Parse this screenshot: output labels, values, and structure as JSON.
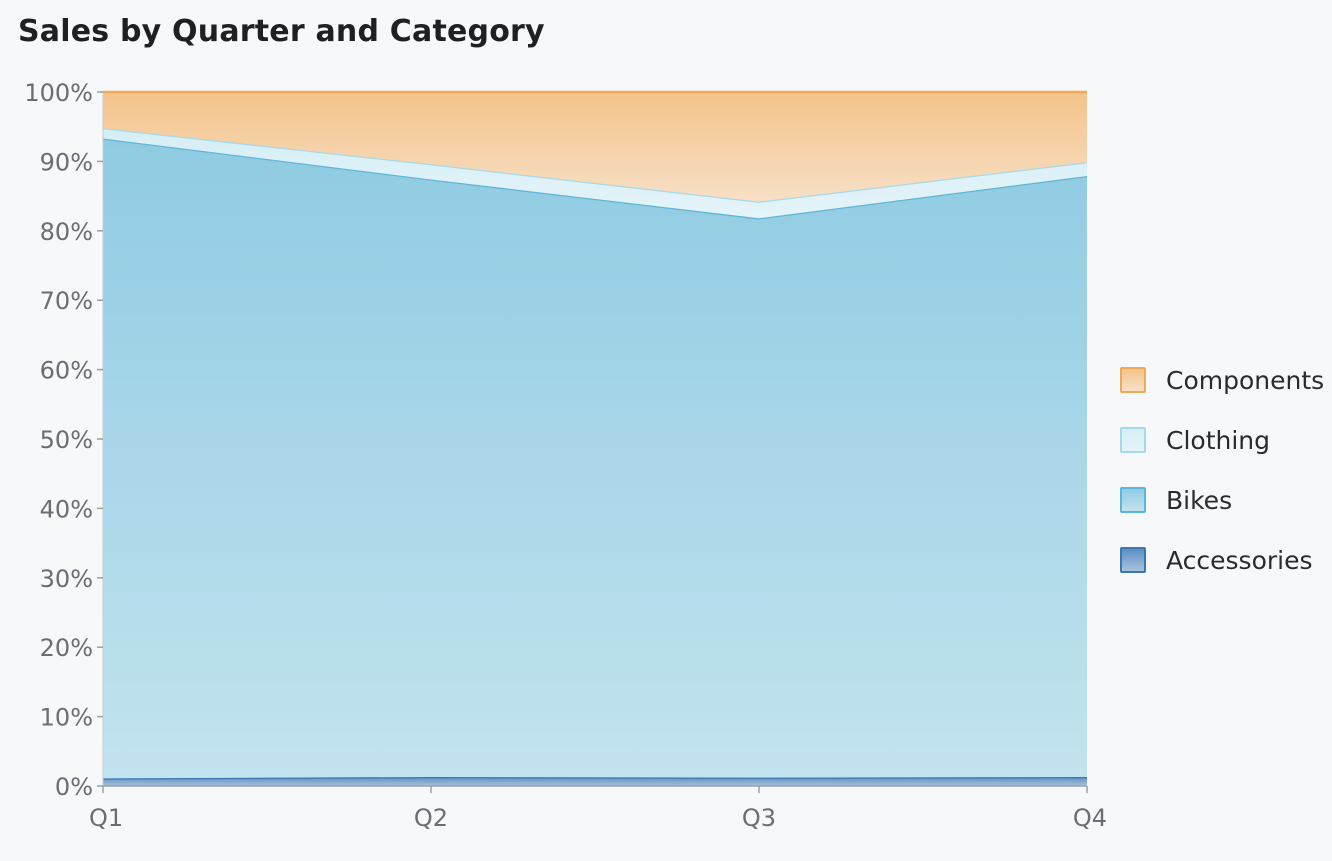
{
  "title": "Sales by Quarter and Category",
  "chart_data": {
    "type": "area",
    "stacked": true,
    "normalized": true,
    "categories": [
      "Q1",
      "Q2",
      "Q3",
      "Q4"
    ],
    "ylim": [
      0,
      100
    ],
    "yticks": [
      "0%",
      "10%",
      "20%",
      "30%",
      "40%",
      "50%",
      "60%",
      "70%",
      "80%",
      "90%",
      "100%"
    ],
    "series": [
      {
        "name": "Accessories",
        "values": [
          1.1,
          1.3,
          1.2,
          1.3
        ],
        "stroke": "#3b77b0",
        "fill_top": "#5b8fc4",
        "fill_bottom": "#a9c2dd"
      },
      {
        "name": "Bikes",
        "values": [
          92.2,
          86.1,
          80.6,
          86.6
        ],
        "stroke": "#5bb7d9",
        "fill_top": "#8fcbe2",
        "fill_bottom": "#c3e3ef"
      },
      {
        "name": "Clothing",
        "values": [
          1.5,
          2.2,
          2.4,
          2.0
        ],
        "stroke": "#a6d9ea",
        "fill_top": "#d6eef6",
        "fill_bottom": "#e4f4f9"
      },
      {
        "name": "Components",
        "values": [
          5.2,
          10.4,
          15.8,
          10.1
        ],
        "stroke": "#f0a957",
        "fill_top": "#f4c38a",
        "fill_bottom": "#f7e0c6"
      }
    ],
    "legend_position": "right"
  }
}
